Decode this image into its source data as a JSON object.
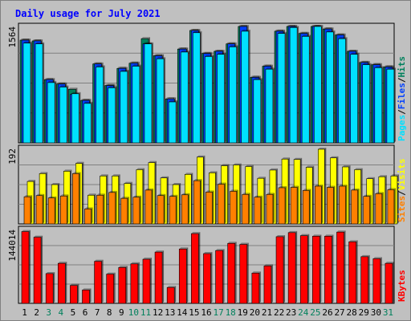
{
  "title": "Daily usage for July 2021",
  "colors": {
    "background": "#c0c0c0",
    "hits": "#00805c",
    "files": "#0040ff",
    "pages": "#00e0ff",
    "visits": "#ffff00",
    "sites": "#ff8000",
    "kbytes": "#ff0000",
    "weekday_label": "#000000",
    "weekend_label": "#00805c"
  },
  "chart_data": [
    {
      "type": "bar",
      "panel": "top",
      "ytick": "1564",
      "ylim": [
        0,
        1564
      ],
      "categories": [
        "1",
        "2",
        "3",
        "4",
        "5",
        "6",
        "7",
        "8",
        "9",
        "10",
        "11",
        "12",
        "13",
        "14",
        "15",
        "16",
        "17",
        "18",
        "19",
        "20",
        "21",
        "22",
        "23",
        "24",
        "25",
        "26",
        "27",
        "28",
        "29",
        "30",
        "31"
      ],
      "series": [
        {
          "name": "Hits",
          "values": [
            1380,
            1370,
            850,
            790,
            720,
            570,
            1060,
            770,
            1000,
            1070,
            1400,
            1170,
            590,
            1260,
            1510,
            1200,
            1230,
            1330,
            1570,
            880,
            1030,
            1500,
            1590,
            1470,
            1610,
            1530,
            1450,
            1230,
            1080,
            1050,
            1020
          ]
        },
        {
          "name": "Files",
          "values": [
            1380,
            1370,
            850,
            790,
            650,
            570,
            1060,
            770,
            1000,
            1070,
            1330,
            1170,
            590,
            1260,
            1510,
            1200,
            1230,
            1330,
            1570,
            880,
            1030,
            1500,
            1590,
            1470,
            1610,
            1530,
            1450,
            1230,
            1080,
            1050,
            1020
          ]
        },
        {
          "name": "Pages",
          "values": [
            1340,
            1330,
            810,
            750,
            660,
            530,
            1020,
            740,
            960,
            1030,
            1330,
            1130,
            550,
            1220,
            1480,
            1160,
            1190,
            1290,
            1500,
            850,
            990,
            1470,
            1550,
            1430,
            1570,
            1490,
            1400,
            1190,
            1050,
            1010,
            990
          ]
        }
      ]
    },
    {
      "type": "bar",
      "panel": "middle",
      "ytick": "192",
      "ylim": [
        0,
        192
      ],
      "categories": [
        "1",
        "2",
        "3",
        "4",
        "5",
        "6",
        "7",
        "8",
        "9",
        "10",
        "11",
        "12",
        "13",
        "14",
        "15",
        "16",
        "17",
        "18",
        "19",
        "20",
        "21",
        "22",
        "23",
        "24",
        "25",
        "26",
        "27",
        "28",
        "29",
        "30",
        "31"
      ],
      "series": [
        {
          "name": "Visits",
          "values": [
            108,
            128,
            100,
            134,
            154,
            73,
            122,
            122,
            103,
            138,
            156,
            117,
            100,
            126,
            170,
            130,
            148,
            150,
            146,
            116,
            137,
            165,
            164,
            144,
            190,
            168,
            145,
            138,
            115,
            120,
            122
          ]
        },
        {
          "name": "Sites",
          "values": [
            69,
            72,
            66,
            71,
            128,
            38,
            73,
            80,
            65,
            68,
            86,
            72,
            70,
            74,
            110,
            81,
            101,
            83,
            75,
            68,
            75,
            92,
            93,
            85,
            96,
            93,
            96,
            86,
            70,
            77,
            87
          ]
        }
      ]
    },
    {
      "type": "bar",
      "panel": "bottom",
      "ytick": "144014",
      "ylim": [
        0,
        144014
      ],
      "categories": [
        "1",
        "2",
        "3",
        "4",
        "5",
        "6",
        "7",
        "8",
        "9",
        "10",
        "11",
        "12",
        "13",
        "14",
        "15",
        "16",
        "17",
        "18",
        "19",
        "20",
        "21",
        "22",
        "23",
        "24",
        "25",
        "26",
        "27",
        "28",
        "29",
        "30",
        "31"
      ],
      "series": [
        {
          "name": "KBytes",
          "values": [
            140000,
            129000,
            58000,
            78000,
            35000,
            26000,
            82000,
            57000,
            70000,
            77000,
            86000,
            100000,
            31000,
            106000,
            136000,
            97000,
            103000,
            117000,
            115000,
            59000,
            73000,
            130000,
            138000,
            132000,
            131000,
            131000,
            139000,
            120000,
            91000,
            87000,
            78000
          ]
        }
      ]
    }
  ],
  "side_labels": {
    "top": [
      {
        "text": "Pages",
        "color": "#00e0ff"
      },
      {
        "text": "/",
        "color": "#000000"
      },
      {
        "text": "Files",
        "color": "#0040ff"
      },
      {
        "text": "/",
        "color": "#000000"
      },
      {
        "text": "Hits",
        "color": "#00805c"
      }
    ],
    "middle": [
      {
        "text": "Sites",
        "color": "#ff8000"
      },
      {
        "text": "/",
        "color": "#000000"
      },
      {
        "text": "Visits",
        "color": "#ffff00"
      }
    ],
    "bottom": [
      {
        "text": "KBytes",
        "color": "#ff0000"
      }
    ]
  },
  "weekend_days": [
    "3",
    "4",
    "10",
    "11",
    "17",
    "18",
    "24",
    "25",
    "31"
  ]
}
